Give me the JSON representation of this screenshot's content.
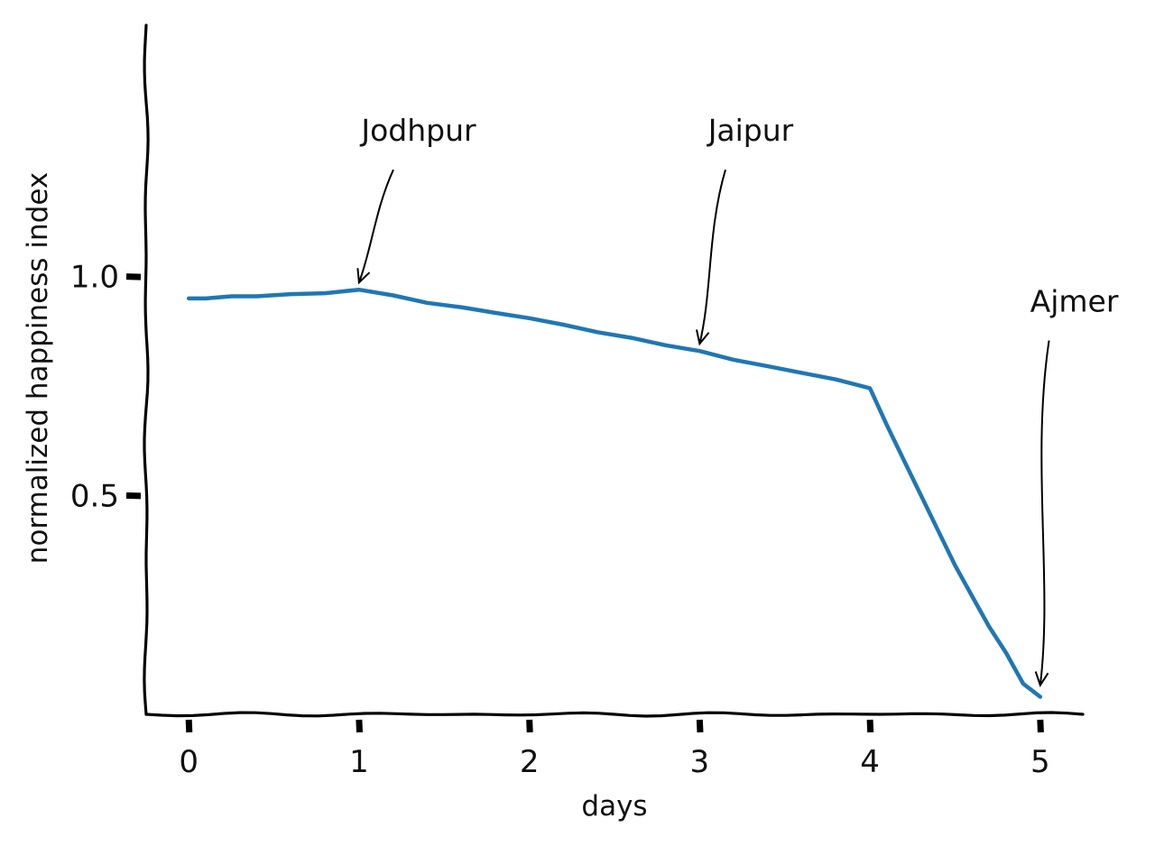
{
  "chart_data": {
    "type": "line",
    "title": "",
    "xlabel": "days",
    "ylabel": "normalized happiness index",
    "xlim": [
      -0.25,
      5.25
    ],
    "ylim": [
      0,
      1.57
    ],
    "x_ticks": [
      0,
      1,
      2,
      3,
      4,
      5
    ],
    "x_tick_labels": [
      "0",
      "1",
      "2",
      "3",
      "4",
      "5"
    ],
    "y_ticks": [
      0.5,
      1.0
    ],
    "y_tick_labels": [
      "0.5",
      "1.0"
    ],
    "grid": false,
    "legend": "none",
    "series": [
      {
        "color": "#1f77b4",
        "x": [
          0,
          0.1,
          0.25,
          0.4,
          0.6,
          0.8,
          1.0,
          1.2,
          1.4,
          1.6,
          1.8,
          2.0,
          2.2,
          2.4,
          2.6,
          2.8,
          3.0,
          3.2,
          3.4,
          3.6,
          3.8,
          4.0,
          4.1,
          4.2,
          4.3,
          4.4,
          4.5,
          4.6,
          4.7,
          4.8,
          4.9,
          5.0
        ],
        "y": [
          0.95,
          0.95,
          0.955,
          0.955,
          0.96,
          0.962,
          0.97,
          0.957,
          0.94,
          0.93,
          0.917,
          0.905,
          0.89,
          0.873,
          0.86,
          0.843,
          0.83,
          0.81,
          0.795,
          0.78,
          0.765,
          0.745,
          0.66,
          0.58,
          0.5,
          0.42,
          0.34,
          0.27,
          0.2,
          0.14,
          0.07,
          0.04
        ]
      }
    ],
    "annotations": [
      {
        "text": "Jodhpur",
        "x": 1,
        "y": 0.97,
        "text_x": 1.35,
        "text_y": 1.31
      },
      {
        "text": "Jaipur",
        "x": 3,
        "y": 0.83,
        "text_x": 3.3,
        "text_y": 1.31
      },
      {
        "text": "Ajmer",
        "x": 5,
        "y": 0.05,
        "text_x": 5.2,
        "text_y": 0.92
      }
    ]
  }
}
